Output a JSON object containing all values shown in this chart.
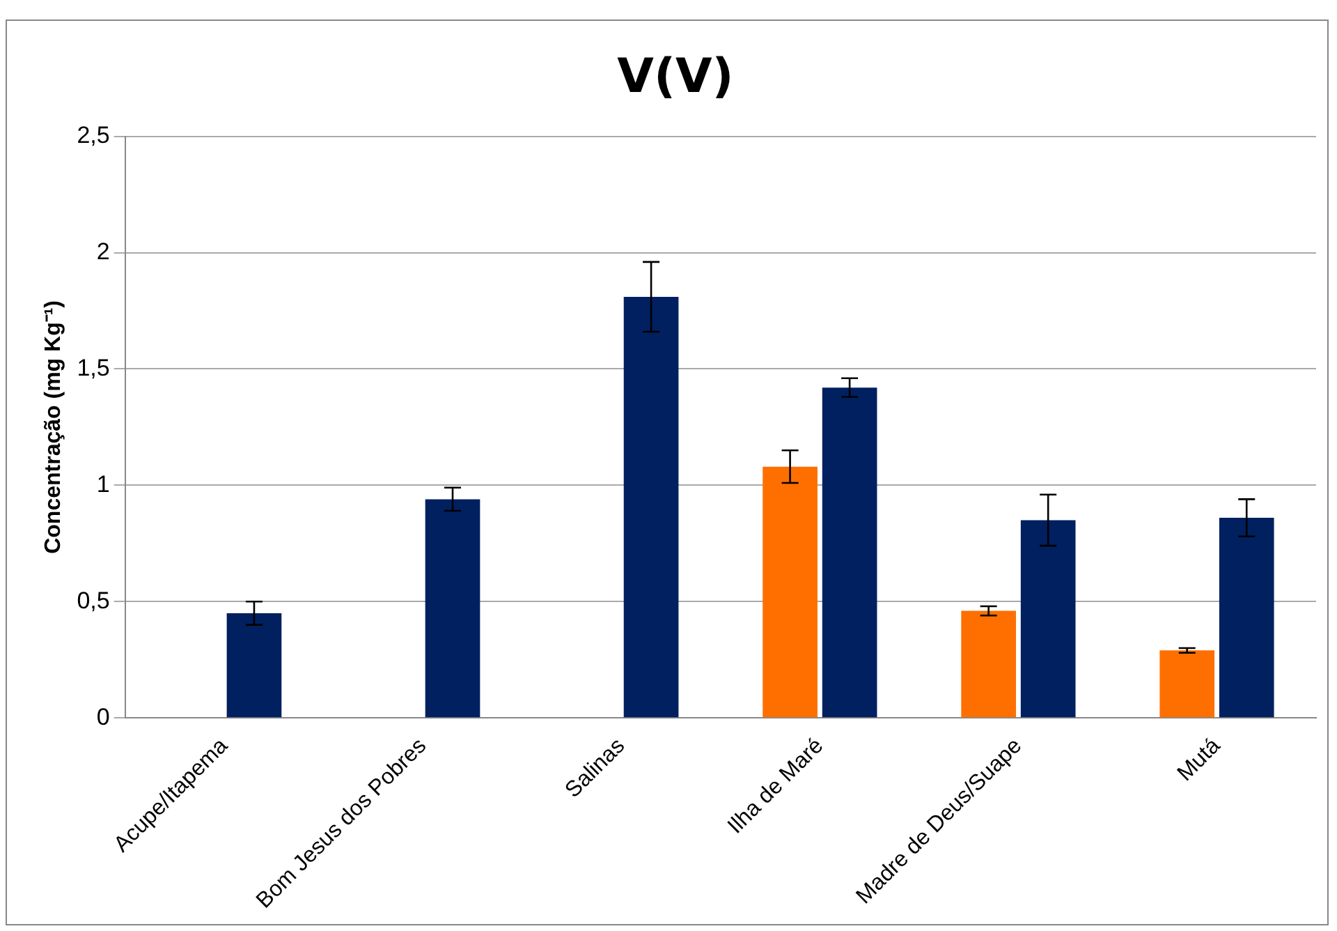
{
  "chart_data": {
    "type": "bar",
    "title": "V(V)",
    "ylabel": "Concentração (mg Kg⁻¹)",
    "categories": [
      "Acupe/Itapema",
      "Bom Jesus dos Pobres",
      "Salinas",
      "Ilha de Maré",
      "Madre de Deus/Suape",
      "Mutá"
    ],
    "series": [
      {
        "color": "#ff6f00",
        "values": [
          null,
          null,
          null,
          1.08,
          0.46,
          0.29
        ],
        "errors": [
          null,
          null,
          null,
          0.07,
          0.02,
          0.01
        ]
      },
      {
        "color": "#002060",
        "values": [
          0.45,
          0.94,
          1.81,
          1.42,
          0.85,
          0.86
        ],
        "errors": [
          0.05,
          0.05,
          0.15,
          0.04,
          0.11,
          0.08
        ]
      }
    ],
    "ylim": [
      0,
      2.5
    ],
    "yticks": [
      0,
      {
        "value": 0.5,
        "label": "0,5"
      },
      1,
      {
        "value": 1.5,
        "label": "1,5"
      },
      2,
      {
        "value": 2.5,
        "label": "2,5"
      }
    ],
    "grid": "y",
    "legend": false
  }
}
